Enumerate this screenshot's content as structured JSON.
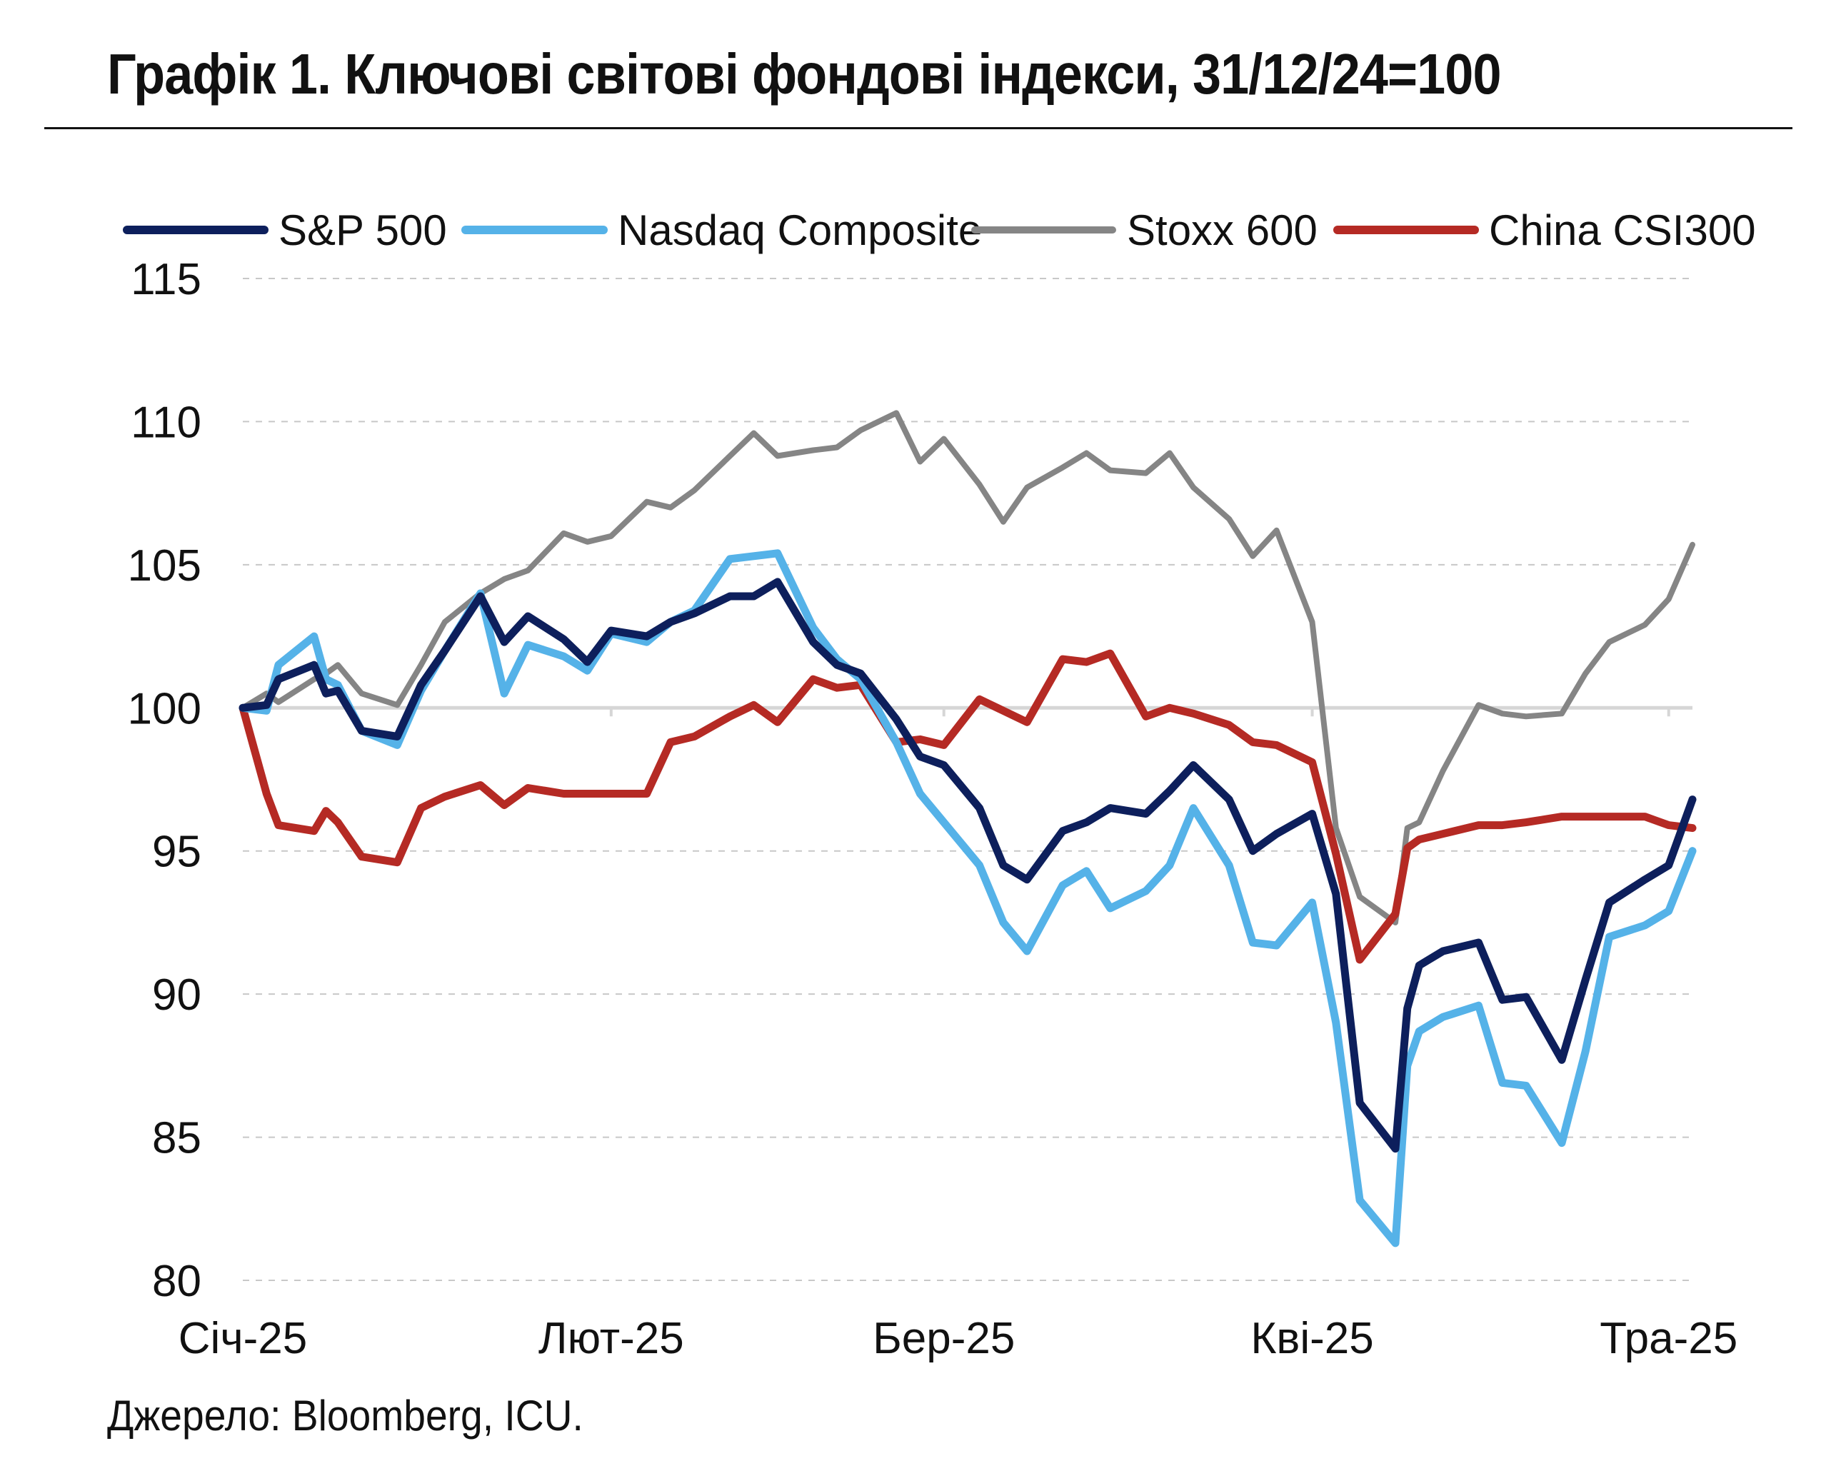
{
  "title": "Графік 1. Ключові світові фондові індекси, 31/12/24=100",
  "source": "Джерело: Bloomberg, ICU.",
  "chart_data": {
    "type": "line",
    "title": "Графік 1. Ключові світові фондові індекси, 31/12/24=100",
    "xlabel": "",
    "ylabel": "",
    "ylim": [
      80,
      115
    ],
    "y_ticks": [
      80,
      85,
      90,
      95,
      100,
      105,
      110,
      115
    ],
    "x_tick_labels": [
      "Січ-25",
      "Лют-25",
      "Бер-25",
      "Кві-25",
      "Тра-25"
    ],
    "x_tick_dates": [
      "2024-12-31",
      "2025-01-31",
      "2025-02-28",
      "2025-03-31",
      "2025-04-30"
    ],
    "xlim": [
      "2024-12-31",
      "2025-05-02"
    ],
    "grid": true,
    "legend_position": "top",
    "x": [
      "2024-12-31",
      "2025-01-02",
      "2025-01-03",
      "2025-01-06",
      "2025-01-07",
      "2025-01-08",
      "2025-01-10",
      "2025-01-13",
      "2025-01-15",
      "2025-01-17",
      "2025-01-20",
      "2025-01-22",
      "2025-01-24",
      "2025-01-27",
      "2025-01-29",
      "2025-01-31",
      "2025-02-03",
      "2025-02-05",
      "2025-02-07",
      "2025-02-10",
      "2025-02-12",
      "2025-02-14",
      "2025-02-17",
      "2025-02-19",
      "2025-02-21",
      "2025-02-24",
      "2025-02-26",
      "2025-02-28",
      "2025-03-03",
      "2025-03-05",
      "2025-03-07",
      "2025-03-10",
      "2025-03-12",
      "2025-03-14",
      "2025-03-17",
      "2025-03-19",
      "2025-03-21",
      "2025-03-24",
      "2025-03-26",
      "2025-03-28",
      "2025-03-31",
      "2025-04-02",
      "2025-04-04",
      "2025-04-07",
      "2025-04-08",
      "2025-04-09",
      "2025-04-11",
      "2025-04-14",
      "2025-04-16",
      "2025-04-18",
      "2025-04-21",
      "2025-04-23",
      "2025-04-25",
      "2025-04-28",
      "2025-04-30",
      "2025-05-02"
    ],
    "series": [
      {
        "name": "S&P 500",
        "color": "#0d1f5c",
        "values": [
          100.0,
          100.1,
          101.0,
          101.5,
          100.5,
          100.6,
          99.2,
          99.0,
          100.8,
          102.0,
          103.9,
          102.3,
          103.2,
          102.4,
          101.6,
          102.7,
          102.5,
          103.0,
          103.3,
          103.9,
          103.9,
          104.4,
          102.3,
          101.5,
          101.2,
          99.6,
          98.3,
          98.0,
          96.5,
          94.5,
          94.0,
          95.7,
          96.0,
          96.5,
          96.3,
          97.1,
          98.0,
          96.8,
          95.0,
          95.6,
          96.3,
          93.5,
          86.2,
          84.6,
          89.5,
          91.0,
          91.5,
          91.8,
          89.8,
          89.9,
          87.7,
          90.5,
          93.2,
          94.0,
          94.5,
          96.8
        ]
      },
      {
        "name": "Nasdaq Composite",
        "color": "#55b2e8",
        "values": [
          100.0,
          99.9,
          101.5,
          102.5,
          101.0,
          100.8,
          99.2,
          98.7,
          100.6,
          102.0,
          104.0,
          100.5,
          102.2,
          101.8,
          101.3,
          102.6,
          102.3,
          103.0,
          103.4,
          105.2,
          105.3,
          105.4,
          102.8,
          101.7,
          101.0,
          98.8,
          97.0,
          96.0,
          94.5,
          92.5,
          91.5,
          93.8,
          94.3,
          93.0,
          93.6,
          94.5,
          96.5,
          94.5,
          91.8,
          91.7,
          93.2,
          89.0,
          82.8,
          81.3,
          87.5,
          88.7,
          89.2,
          89.6,
          86.9,
          86.8,
          84.8,
          88.0,
          92.0,
          92.4,
          92.9,
          95.0
        ]
      },
      {
        "name": "Stoxx 600",
        "color": "#858585",
        "values": [
          100.0,
          100.5,
          100.2,
          101.0,
          101.2,
          101.5,
          100.5,
          100.1,
          101.5,
          103.0,
          104.0,
          104.5,
          104.8,
          106.1,
          105.8,
          106.0,
          107.2,
          107.0,
          107.6,
          108.8,
          109.6,
          108.8,
          109.0,
          109.1,
          109.7,
          110.3,
          108.6,
          109.4,
          107.8,
          106.5,
          107.7,
          108.4,
          108.9,
          108.3,
          108.2,
          108.9,
          107.7,
          106.6,
          105.3,
          106.2,
          103.0,
          95.8,
          93.4,
          92.5,
          95.8,
          96.0,
          97.8,
          100.1,
          99.8,
          99.7,
          99.8,
          101.2,
          102.3,
          102.9,
          103.8,
          105.7
        ]
      },
      {
        "name": "China CSI300",
        "color": "#b52a24",
        "values": [
          100.0,
          97.0,
          95.9,
          95.7,
          96.4,
          96.0,
          94.8,
          94.6,
          96.5,
          96.9,
          97.3,
          96.6,
          97.2,
          97.0,
          97.0,
          97.0,
          97.0,
          98.8,
          99.0,
          99.7,
          100.1,
          99.5,
          101.0,
          100.7,
          100.8,
          98.8,
          98.9,
          98.7,
          100.3,
          99.9,
          99.5,
          101.7,
          101.6,
          101.9,
          99.7,
          100.0,
          99.8,
          99.4,
          98.8,
          98.7,
          98.1,
          94.9,
          91.2,
          92.8,
          95.1,
          95.4,
          95.6,
          95.9,
          95.9,
          96.0,
          96.2,
          96.2,
          96.2,
          96.2,
          95.9,
          95.8
        ]
      }
    ]
  }
}
